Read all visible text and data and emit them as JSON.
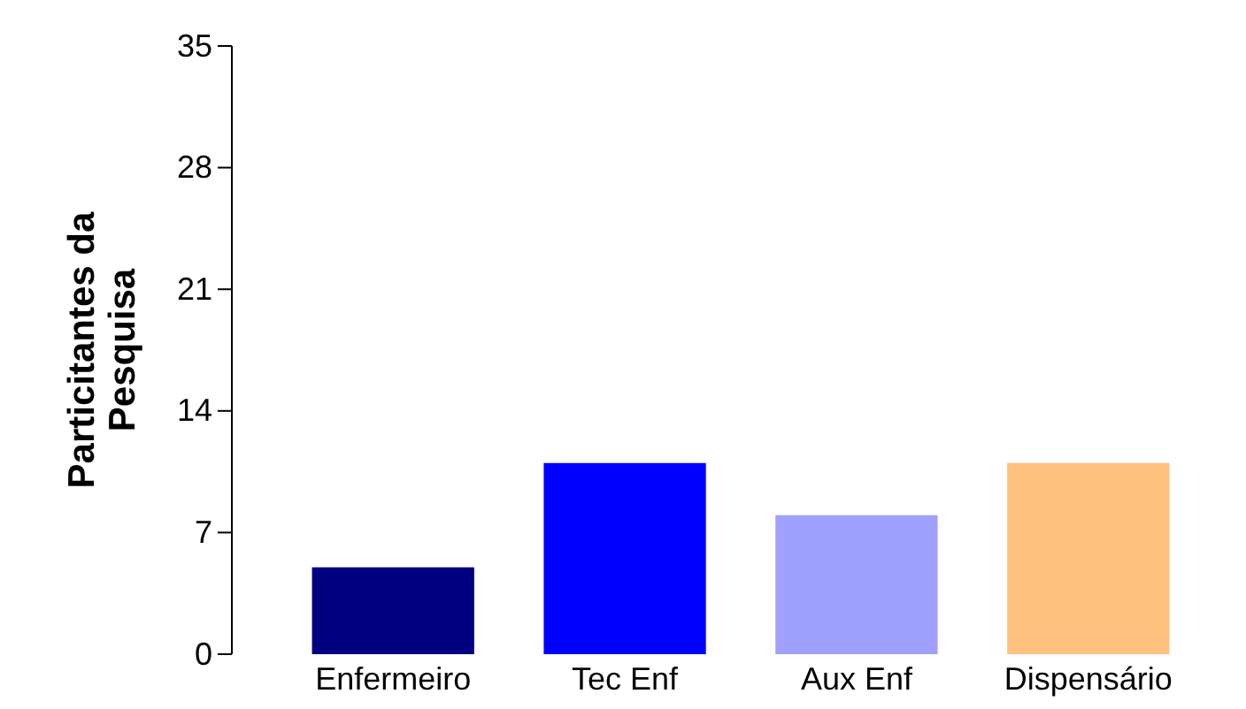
{
  "chart_data": {
    "type": "bar",
    "ylabel": "Particitantes da Pesquisa",
    "categories": [
      "Enfermeiro",
      "Tec Enf",
      "Aux Enf",
      "Dispensário"
    ],
    "values": [
      5,
      11,
      8,
      11
    ],
    "colors": [
      "#000080",
      "#0000ff",
      "#a0a0ff",
      "#ffc080"
    ],
    "ylim": [
      0,
      35
    ],
    "yticks": [
      0,
      7,
      14,
      21,
      28,
      35
    ],
    "grid": false
  }
}
